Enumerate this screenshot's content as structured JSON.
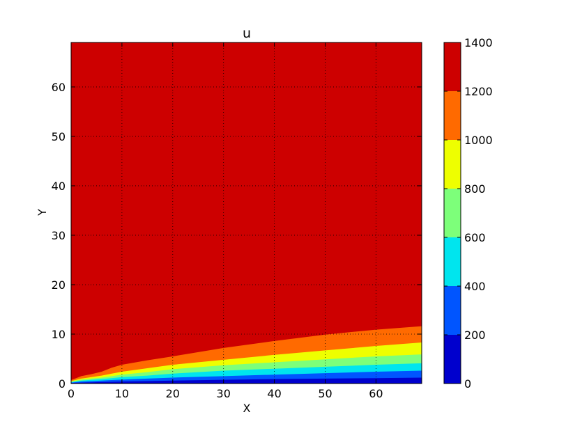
{
  "chart_data": {
    "type": "contourf",
    "title": "u",
    "xlabel": "X",
    "ylabel": "Y",
    "xlim": [
      0,
      69
    ],
    "ylim": [
      0,
      69
    ],
    "xticks": [
      0,
      10,
      20,
      30,
      40,
      50,
      60
    ],
    "yticks": [
      0,
      10,
      20,
      30,
      40,
      50,
      60
    ],
    "grid": true,
    "grid_style": "dotted",
    "colorbar": {
      "position": "right",
      "ticks": [
        0,
        200,
        400,
        600,
        800,
        1000,
        1200,
        1400
      ],
      "levels": [
        0,
        200,
        400,
        600,
        800,
        1000,
        1200,
        1400
      ],
      "colors": [
        "#0000cd",
        "#0055ff",
        "#00e5ee",
        "#7dff7a",
        "#eeff00",
        "#ff6a00",
        "#cd0000"
      ]
    },
    "contour_x": [
      0,
      1,
      2,
      4,
      6,
      8,
      10,
      15,
      20,
      30,
      40,
      50,
      60,
      69
    ],
    "contour_boundaries": [
      {
        "level": 200,
        "y": [
          0.1,
          0.15,
          0.2,
          0.25,
          0.3,
          0.35,
          0.4,
          0.5,
          0.6,
          0.75,
          0.9,
          1.0,
          1.1,
          1.2
        ]
      },
      {
        "level": 400,
        "y": [
          0.2,
          0.3,
          0.4,
          0.5,
          0.6,
          0.7,
          0.8,
          1.0,
          1.2,
          1.5,
          1.8,
          2.1,
          2.4,
          2.6
        ]
      },
      {
        "level": 600,
        "y": [
          0.3,
          0.45,
          0.6,
          0.75,
          0.9,
          1.1,
          1.3,
          1.6,
          2.0,
          2.6,
          3.0,
          3.4,
          3.8,
          4.1
        ]
      },
      {
        "level": 800,
        "y": [
          0.4,
          0.6,
          0.8,
          1.0,
          1.2,
          1.5,
          1.8,
          2.3,
          2.9,
          3.7,
          4.3,
          4.9,
          5.5,
          5.9
        ]
      },
      {
        "level": 1000,
        "y": [
          0.5,
          0.75,
          1.0,
          1.3,
          1.6,
          2.0,
          2.4,
          3.1,
          3.8,
          4.8,
          5.8,
          6.7,
          7.6,
          8.3
        ]
      },
      {
        "level": 1200,
        "y": [
          0.7,
          1.1,
          1.5,
          1.9,
          2.4,
          3.2,
          3.8,
          4.7,
          5.5,
          7.2,
          8.6,
          9.9,
          10.9,
          11.6
        ]
      }
    ]
  }
}
